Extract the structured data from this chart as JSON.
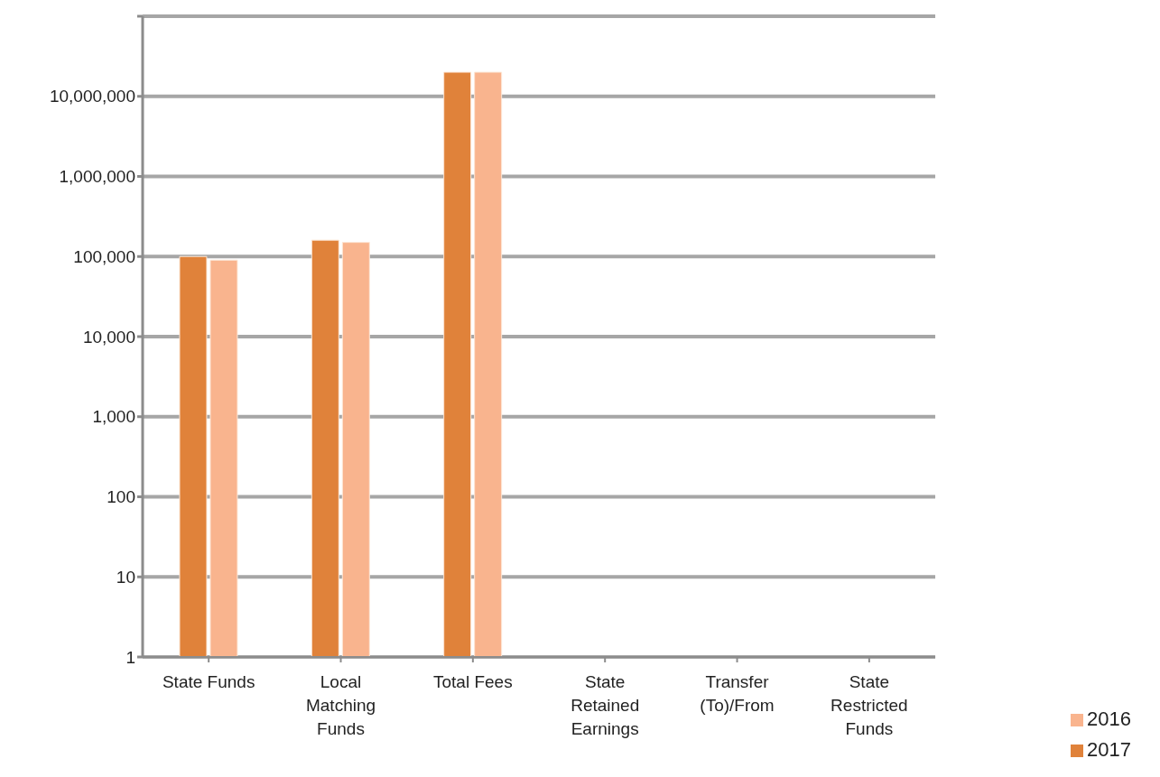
{
  "chart_data": {
    "type": "bar",
    "categories": [
      "State Funds",
      "Local Matching Funds",
      "Total Fees",
      "State Retained Earnings",
      "Transfer (To)/From",
      "State Restricted Funds"
    ],
    "series": [
      {
        "name": "2017",
        "color": "#e0823a",
        "values": [
          100000,
          160000,
          20000000,
          1,
          1,
          1
        ]
      },
      {
        "name": "2016",
        "color": "#f9b48e",
        "values": [
          90000,
          150000,
          20000000,
          1,
          1,
          1
        ]
      }
    ],
    "log": "y",
    "ylim": [
      1,
      100000000
    ],
    "yticks": [
      {
        "value": 1,
        "label": "1"
      },
      {
        "value": 10,
        "label": "10"
      },
      {
        "value": 100,
        "label": "100"
      },
      {
        "value": 1000,
        "label": "1,000"
      },
      {
        "value": 10000,
        "label": "10,000"
      },
      {
        "value": 100000,
        "label": "100,000"
      },
      {
        "value": 1000000,
        "label": "1,000,000"
      },
      {
        "value": 10000000,
        "label": "10,000,000"
      },
      {
        "value": 100000000,
        "label": null
      }
    ],
    "grid": "y",
    "legend": "bottom right"
  }
}
